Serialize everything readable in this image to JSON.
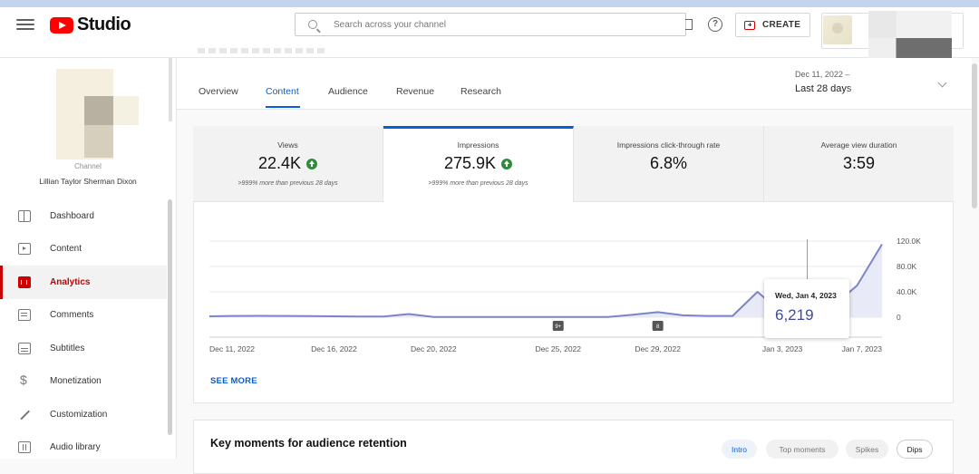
{
  "header": {
    "logo_text": "Studio",
    "search_placeholder": "Search across your channel",
    "create_label": "CREATE"
  },
  "channel": {
    "label": "Channel",
    "name": "Lillian Taylor Sherman Dixon"
  },
  "sidebar": {
    "items": [
      {
        "label": "Dashboard",
        "icon": "dashboard-icon"
      },
      {
        "label": "Content",
        "icon": "content-icon"
      },
      {
        "label": "Analytics",
        "icon": "analytics-icon",
        "active": true
      },
      {
        "label": "Comments",
        "icon": "comments-icon"
      },
      {
        "label": "Subtitles",
        "icon": "subtitles-icon"
      },
      {
        "label": "Monetization",
        "icon": "monetization-icon"
      },
      {
        "label": "Customization",
        "icon": "customization-icon"
      },
      {
        "label": "Audio library",
        "icon": "audio-library-icon"
      }
    ]
  },
  "tabs": [
    {
      "label": "Overview"
    },
    {
      "label": "Content",
      "active": true
    },
    {
      "label": "Audience"
    },
    {
      "label": "Revenue"
    },
    {
      "label": "Research"
    }
  ],
  "date_range": {
    "range": "Dec 11, 2022 – ",
    "period": "Last 28 days"
  },
  "metrics": [
    {
      "title": "Views",
      "value": "22.4K",
      "comparison": ">999% more than previous 28 days",
      "trend": "up"
    },
    {
      "title": "Impressions",
      "value": "275.9K",
      "comparison": ">999% more than previous 28 days",
      "trend": "up",
      "active": true
    },
    {
      "title": "Impressions click-through rate",
      "value": "6.8%"
    },
    {
      "title": "Average view duration",
      "value": "3:59"
    }
  ],
  "chart_data": {
    "type": "area",
    "x": [
      "Dec 11, 2022",
      "Dec 12",
      "Dec 13",
      "Dec 14",
      "Dec 15",
      "Dec 16, 2022",
      "Dec 17",
      "Dec 18",
      "Dec 19",
      "Dec 20, 2022",
      "Dec 21",
      "Dec 22",
      "Dec 23",
      "Dec 24",
      "Dec 25, 2022",
      "Dec 26",
      "Dec 27",
      "Dec 28",
      "Dec 29, 2022",
      "Dec 30",
      "Dec 31",
      "Jan 1",
      "Jan 2",
      "Jan 3, 2023",
      "Jan 4",
      "Jan 5",
      "Jan 6",
      "Jan 7, 2023"
    ],
    "values": [
      1500,
      2000,
      2200,
      2000,
      1800,
      1500,
      1200,
      1000,
      5000,
      500,
      500,
      500,
      500,
      500,
      500,
      500,
      500,
      4000,
      8000,
      3000,
      2000,
      2000,
      40000,
      6219,
      6219,
      16000,
      50000,
      115000
    ],
    "x_tick_labels": [
      "Dec 11, 2022",
      "Dec 16, 2022",
      "Dec 20, 2022",
      "Dec 25, 2022",
      "Dec 29, 2022",
      "Jan 3, 2023",
      "Jan 7, 2023"
    ],
    "y_tick_labels": [
      "120.0K",
      "80.0K",
      "40.0K",
      "0"
    ],
    "ylim": [
      0,
      120000
    ],
    "markers": [
      {
        "label": "9+",
        "x": "Dec 25, 2022"
      },
      {
        "label": "8",
        "x": "Dec 29, 2022"
      }
    ],
    "tooltip": {
      "date": "Wed, Jan 4, 2023",
      "value": "6,219"
    },
    "grid": true,
    "line_color": "#7b84c8",
    "fill_color": "#e9eaf7"
  },
  "see_more_label": "SEE MORE",
  "key_moments": {
    "title": "Key moments for audience retention",
    "chips": [
      {
        "label": "Intro",
        "active": true
      },
      {
        "label": "Top moments"
      },
      {
        "label": "Spikes"
      },
      {
        "label": "Dips"
      }
    ]
  }
}
